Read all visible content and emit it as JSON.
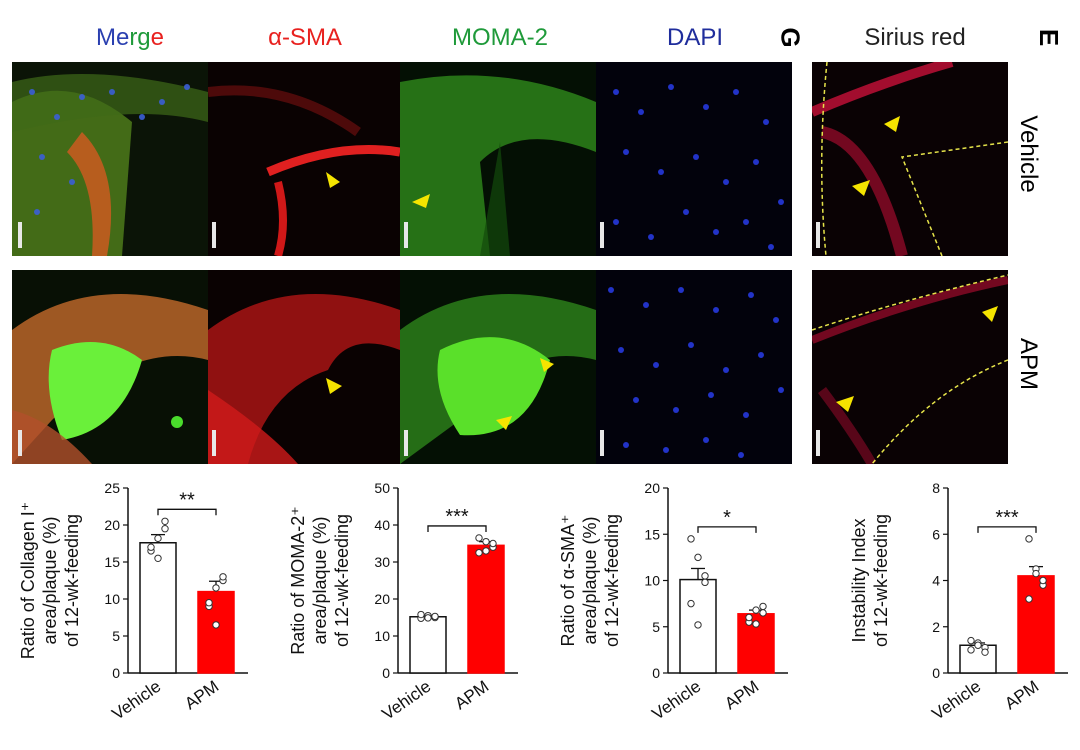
{
  "figure": {
    "column_headers": [
      "Merge",
      "α-SMA",
      "MOMA-2",
      "DAPI"
    ],
    "merge_parts": [
      "Me",
      "rg",
      "e"
    ],
    "sirius_header": "Sirius red",
    "panel_letters": [
      "G",
      "E"
    ],
    "row_labels": [
      "Vehicle",
      "APM"
    ]
  },
  "colors": {
    "merge_blue": "#2a3fb0",
    "merge_red": "#e8211f",
    "sma": "#e8211f",
    "moma": "#1f9a3a",
    "dapi": "#1f2d9c",
    "bar_apm": "#ff0000",
    "bar_vehicle": "#ffffff"
  },
  "chart_data": [
    {
      "type": "bar",
      "categories": [
        "Vehicle",
        "APM"
      ],
      "values": [
        17.6,
        11.0
      ],
      "errors": [
        1.1,
        1.4
      ],
      "points": [
        [
          16.5,
          18.2,
          19.5,
          17.0,
          15.5,
          20.5
        ],
        [
          9.0,
          11.5,
          12.5,
          9.5,
          6.5,
          13.0
        ]
      ],
      "ylabel_lines": [
        "Ratio of Collagen I⁺",
        "area/plaque (%)",
        "of 12-wk-feeding"
      ],
      "ylim": [
        0,
        25
      ],
      "yticks": [
        "0",
        "5",
        "10",
        "15",
        "20",
        "25"
      ],
      "significance": "**"
    },
    {
      "type": "bar",
      "categories": [
        "Vehicle",
        "APM"
      ],
      "values": [
        15.2,
        34.5
      ],
      "errors": [
        0.4,
        1.0
      ],
      "points": [
        [
          14.8,
          15.5,
          15.0,
          15.8,
          14.9,
          15.3
        ],
        [
          32.5,
          35.5,
          34.0,
          36.5,
          33.0,
          35.0
        ]
      ],
      "ylabel_lines": [
        "Ratio of MOMA-2⁺",
        "area/plaque (%)",
        "of 12-wk-feeding"
      ],
      "ylim": [
        0,
        50
      ],
      "yticks": [
        "0",
        "10",
        "20",
        "30",
        "40",
        "50"
      ],
      "significance": "***"
    },
    {
      "type": "bar",
      "categories": [
        "Vehicle",
        "APM"
      ],
      "values": [
        10.1,
        6.4
      ],
      "errors": [
        1.2,
        0.4
      ],
      "points": [
        [
          14.5,
          12.5,
          9.8,
          7.5,
          5.2,
          10.5
        ],
        [
          5.5,
          6.8,
          7.2,
          6.0,
          5.3,
          6.5
        ]
      ],
      "ylabel_lines": [
        "Ratio of α-SMA⁺",
        "area/plaque (%)",
        "of 12-wk-feeding"
      ],
      "ylim": [
        0,
        20
      ],
      "yticks": [
        "0",
        "5",
        "10",
        "15",
        "20"
      ],
      "significance": "*"
    },
    {
      "type": "bar",
      "categories": [
        "Vehicle",
        "APM"
      ],
      "values": [
        1.2,
        4.2
      ],
      "errors": [
        0.1,
        0.4
      ],
      "points": [
        [
          1.0,
          1.3,
          1.1,
          1.4,
          1.2,
          0.9
        ],
        [
          5.8,
          4.5,
          3.8,
          3.2,
          4.3,
          4.0
        ]
      ],
      "ylabel_lines": [
        "Instability Index",
        "of 12-wk-feeding"
      ],
      "ylim": [
        0,
        8
      ],
      "yticks": [
        "0",
        "2",
        "4",
        "6",
        "8"
      ],
      "significance": "***"
    }
  ]
}
